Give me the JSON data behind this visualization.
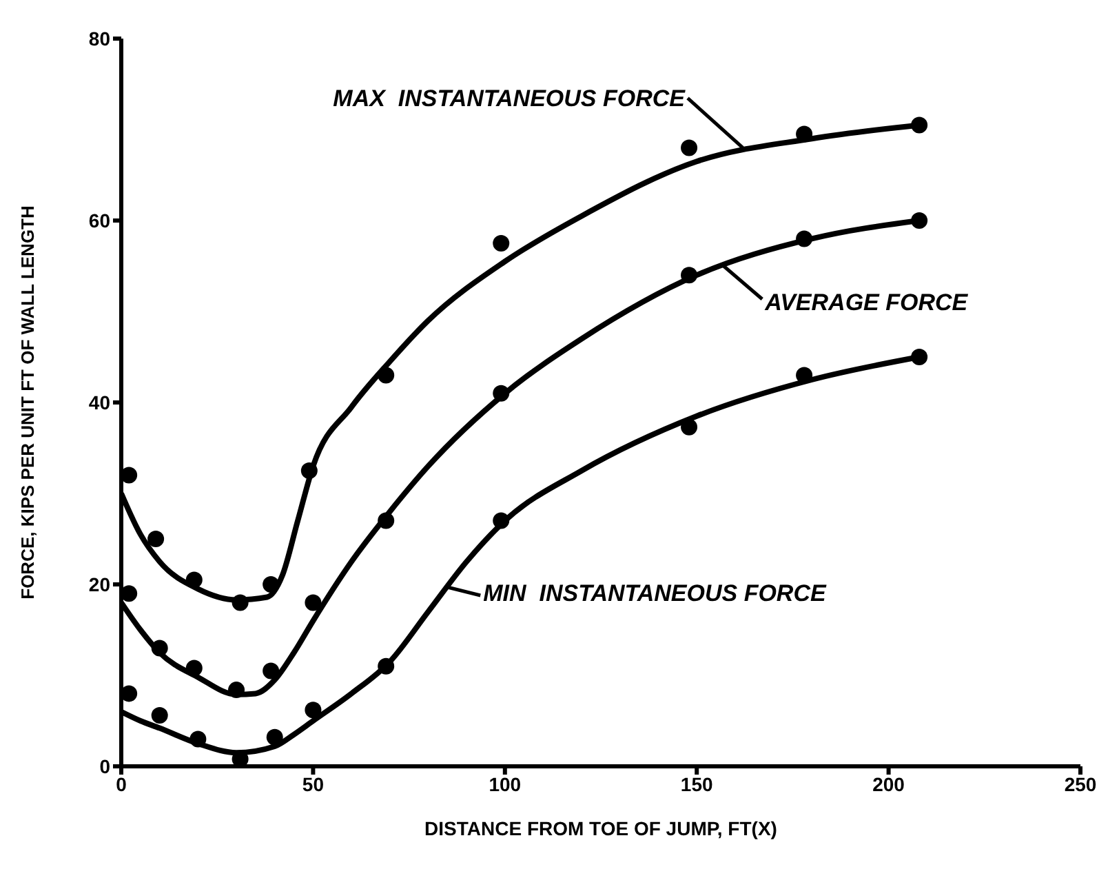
{
  "chart_data": {
    "type": "scatter",
    "xlabel": "DISTANCE FROM TOE OF JUMP, FT(X)",
    "ylabel": "FORCE, KIPS PER UNIT FT OF WALL LENGTH",
    "xlim": [
      0,
      250
    ],
    "xticks": [
      0,
      50,
      100,
      150,
      200,
      250
    ],
    "ylim": [
      0,
      80
    ],
    "yticks": [
      0,
      20,
      40,
      60,
      80
    ],
    "series": [
      {
        "type": "line",
        "marker": "none",
        "color": "#000000",
        "x": [
          0,
          5,
          10,
          20,
          30,
          38,
          42,
          46,
          50,
          60,
          70,
          80,
          100,
          120,
          150,
          180,
          208
        ],
        "values": [
          30,
          25.5,
          22.5,
          19.5,
          18.3,
          18.6,
          21,
          27,
          33,
          39.5,
          44.5,
          49,
          55.5,
          60.5,
          66.5,
          69,
          70.5
        ]
      },
      {
        "type": "line",
        "marker": "none",
        "color": "#000000",
        "x": [
          0,
          5,
          10,
          20,
          30,
          35,
          40,
          45,
          50,
          60,
          70,
          80,
          100,
          120,
          150,
          180,
          208
        ],
        "values": [
          18,
          15,
          12.5,
          9.8,
          7.9,
          8,
          9.5,
          12.5,
          16,
          22.5,
          28,
          33,
          41,
          47,
          54,
          58,
          60
        ]
      },
      {
        "type": "line",
        "marker": "none",
        "color": "#000000",
        "x": [
          0,
          5,
          10,
          20,
          30,
          40,
          45,
          50,
          60,
          70,
          80,
          90,
          100,
          120,
          150,
          180,
          208
        ],
        "values": [
          6,
          5,
          4.2,
          2.5,
          1.5,
          2.2,
          3.5,
          5,
          8,
          11.5,
          17,
          22.5,
          27,
          32.5,
          38.5,
          42.5,
          45
        ]
      },
      {
        "marker": "circle",
        "color": "#000000",
        "x": [
          2,
          9,
          19,
          31,
          39,
          49,
          69,
          99,
          148,
          178,
          208
        ],
        "values": [
          32,
          25,
          20.5,
          18,
          20,
          32.5,
          43,
          57.5,
          68,
          69.5,
          70.5
        ]
      },
      {
        "marker": "circle",
        "color": "#000000",
        "x": [
          2,
          10,
          19,
          30,
          39,
          50,
          69,
          99,
          148,
          178,
          208
        ],
        "values": [
          19,
          13,
          10.8,
          8.4,
          10.5,
          18,
          27,
          41,
          54,
          58,
          60
        ]
      },
      {
        "marker": "circle",
        "color": "#000000",
        "x": [
          2,
          10,
          20,
          31,
          40,
          50,
          69,
          99,
          148,
          178,
          208
        ],
        "values": [
          8,
          5.6,
          3,
          0.8,
          3.2,
          6.2,
          11,
          27,
          37.3,
          43,
          45
        ]
      }
    ],
    "annotations": [
      {
        "text": "MAX  INSTANTANEOUS FORCE",
        "x": 162,
        "y": 68
      },
      {
        "text": "AVERAGE FORCE",
        "x": 157,
        "y": 55
      },
      {
        "text": "MIN  INSTANTANEOUS FORCE",
        "x": 85,
        "y": 19.7
      }
    ]
  }
}
